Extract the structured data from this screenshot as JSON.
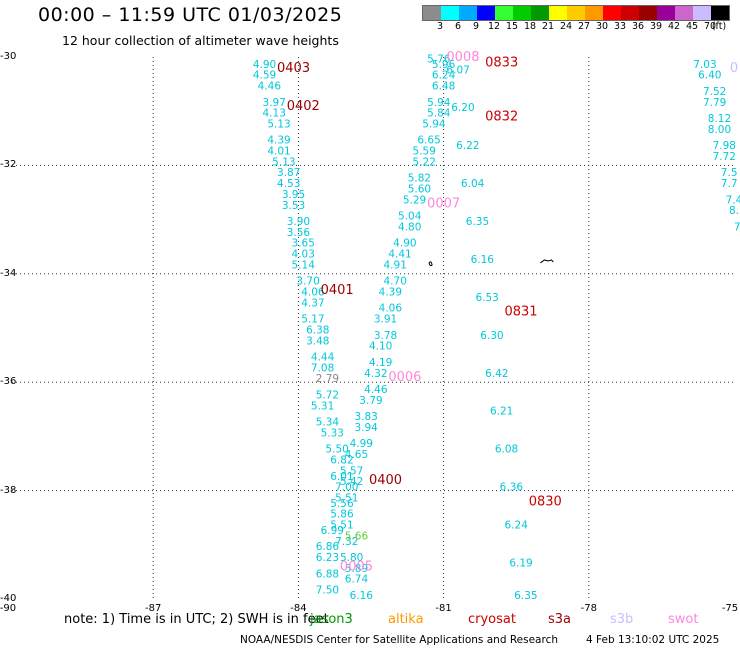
{
  "header": {
    "title": "00:00 – 11:59 UTC 01/03/2025",
    "subtitle": "12 hour collection of altimeter wave heights"
  },
  "colorbar": {
    "colors": [
      "#8c8c8c",
      "#00ffff",
      "#00aaff",
      "#0000ff",
      "#33ff33",
      "#00cc00",
      "#009900",
      "#ffff00",
      "#ffcc00",
      "#ff9900",
      "#ff0000",
      "#cc0000",
      "#990000",
      "#990099",
      "#cc66cc",
      "#ccbbff",
      "#000000"
    ],
    "labels": [
      "3",
      "6",
      "9",
      "12",
      "15",
      "18",
      "21",
      "24",
      "27",
      "30",
      "33",
      "36",
      "39",
      "42",
      "45",
      "70",
      "(ft)"
    ]
  },
  "axes": {
    "lat_labels": [
      "-30",
      "-32",
      "-34",
      "-36",
      "-38",
      "-40"
    ],
    "lon_labels": [
      "-90",
      "-87",
      "-84",
      "-81",
      "-78",
      "-75"
    ],
    "lon_range": [
      -90,
      -75
    ],
    "lat_range": [
      -40,
      -30
    ]
  },
  "tracks": [
    {
      "id": "t1",
      "color": "#00c8dc",
      "points": [
        [
          -84.7,
          -30.2,
          "4.90"
        ],
        [
          -84.7,
          -30.4,
          "4.59"
        ],
        [
          -84.6,
          -30.6,
          "4.46"
        ],
        [
          -84.5,
          -30.9,
          "3.97"
        ],
        [
          -84.5,
          -31.1,
          "4.13"
        ],
        [
          -84.4,
          -31.3,
          "5.13"
        ],
        [
          -84.4,
          -31.6,
          "4.39"
        ],
        [
          -84.4,
          -31.8,
          "4.01"
        ],
        [
          -84.3,
          -32.0,
          "5.13"
        ],
        [
          -84.2,
          -32.2,
          "3.87"
        ],
        [
          -84.2,
          -32.4,
          "4.53"
        ],
        [
          -84.1,
          -32.6,
          "3.95"
        ],
        [
          -84.1,
          -32.8,
          "3.53"
        ],
        [
          -84.0,
          -33.1,
          "3.90"
        ],
        [
          -84.0,
          -33.3,
          "3.56"
        ],
        [
          -83.9,
          -33.5,
          "3.65"
        ],
        [
          -83.9,
          -33.7,
          "4.03"
        ],
        [
          -83.9,
          -33.9,
          "5.14"
        ],
        [
          -83.8,
          -34.2,
          "3.70"
        ],
        [
          -83.7,
          -34.4,
          "4.06"
        ],
        [
          -83.7,
          -34.6,
          "4.37"
        ],
        [
          -83.7,
          -34.9,
          "5.17"
        ],
        [
          -83.6,
          -35.1,
          "6.38"
        ],
        [
          -83.6,
          -35.3,
          "3.48"
        ],
        [
          -83.5,
          -35.6,
          "4.44"
        ],
        [
          -83.5,
          -35.8,
          "7.08"
        ]
      ]
    },
    {
      "id": "t1b",
      "color": "#888888",
      "points": [
        [
          -83.4,
          -36.0,
          "2.79"
        ]
      ]
    },
    {
      "id": "t2",
      "color": "#00c8dc",
      "points": [
        [
          -81.1,
          -30.1,
          "5.76"
        ],
        [
          -81.0,
          -30.2,
          "5.96"
        ],
        [
          -81.0,
          -30.4,
          "6.24"
        ],
        [
          -81.0,
          -30.6,
          "6.48"
        ],
        [
          -81.1,
          -30.9,
          "5.94"
        ],
        [
          -81.1,
          -31.1,
          "5.84"
        ],
        [
          -81.2,
          -31.3,
          "5.94"
        ],
        [
          -81.3,
          -31.6,
          "6.65"
        ],
        [
          -81.4,
          -31.8,
          "5.59"
        ],
        [
          -81.4,
          -32.0,
          "5.22"
        ],
        [
          -81.5,
          -32.3,
          "5.82"
        ],
        [
          -81.5,
          -32.5,
          "5.60"
        ],
        [
          -81.6,
          -32.7,
          "5.29"
        ],
        [
          -81.7,
          -33.0,
          "5.04"
        ],
        [
          -81.7,
          -33.2,
          "4.80"
        ],
        [
          -81.8,
          -33.5,
          "4.90"
        ],
        [
          -81.9,
          -33.7,
          "4.41"
        ],
        [
          -82.0,
          -33.9,
          "4.91"
        ],
        [
          -82.0,
          -34.2,
          "4.70"
        ],
        [
          -82.1,
          -34.4,
          "4.39"
        ],
        [
          -82.1,
          -34.7,
          "4.06"
        ],
        [
          -82.2,
          -34.9,
          "3.91"
        ],
        [
          -82.2,
          -35.2,
          "3.78"
        ],
        [
          -82.3,
          -35.4,
          "4.10"
        ],
        [
          -82.3,
          -35.7,
          "4.19"
        ],
        [
          -82.4,
          -35.9,
          "4.32"
        ],
        [
          -82.4,
          -36.2,
          "4.46"
        ],
        [
          -82.5,
          -36.4,
          "3.79"
        ],
        [
          -82.6,
          -36.7,
          "3.83"
        ],
        [
          -82.6,
          -36.9,
          "3.94"
        ],
        [
          -82.7,
          -37.2,
          "4.99"
        ],
        [
          -82.8,
          -37.4,
          "4.65"
        ],
        [
          -82.9,
          -37.7,
          "5.57"
        ],
        [
          -82.9,
          -37.9,
          "5.42"
        ],
        [
          -83.0,
          -38.2,
          "5.51"
        ],
        [
          -83.1,
          -38.5,
          "5.86"
        ],
        [
          -83.1,
          -38.7,
          "5.51"
        ],
        [
          -83.0,
          -39.0,
          "7.32"
        ],
        [
          -82.9,
          -39.3,
          "5.80"
        ],
        [
          -82.8,
          -39.5,
          "5.89"
        ],
        [
          -82.8,
          -39.7,
          "6.74"
        ],
        [
          -82.7,
          -40.0,
          "6.16"
        ]
      ]
    },
    {
      "id": "t3",
      "color": "#00c8dc",
      "points": [
        [
          -83.4,
          -36.3,
          "5.72"
        ],
        [
          -83.5,
          -36.5,
          "5.31"
        ],
        [
          -83.4,
          -36.8,
          "5.34"
        ],
        [
          -83.3,
          -37.0,
          "5.33"
        ],
        [
          -83.2,
          -37.3,
          "5.50"
        ],
        [
          -83.1,
          -37.5,
          "6.82"
        ],
        [
          -83.1,
          -37.8,
          "6.01"
        ],
        [
          -83.0,
          -38.0,
          "7.00"
        ],
        [
          -83.1,
          -38.3,
          "5.56"
        ],
        [
          -83.3,
          -38.8,
          "6.99"
        ],
        [
          -83.4,
          -39.1,
          "6.86"
        ],
        [
          -83.4,
          -39.3,
          "6.23"
        ],
        [
          -83.4,
          -39.6,
          "6.88"
        ],
        [
          -83.4,
          -39.9,
          "7.50"
        ]
      ]
    },
    {
      "id": "t3b",
      "color": "#66cc33",
      "points": [
        [
          -82.8,
          -38.9,
          "5.66"
        ]
      ]
    },
    {
      "id": "t4",
      "color": "#00c8dc",
      "points": [
        [
          -80.7,
          -30.3,
          "6.07"
        ],
        [
          -80.6,
          -31.0,
          "6.20"
        ],
        [
          -80.5,
          -31.7,
          "6.22"
        ],
        [
          -80.4,
          -32.4,
          "6.04"
        ],
        [
          -80.3,
          -33.1,
          "6.35"
        ],
        [
          -80.2,
          -33.8,
          "6.16"
        ],
        [
          -80.1,
          -34.5,
          "6.53"
        ],
        [
          -80.0,
          -35.2,
          "6.30"
        ],
        [
          -79.9,
          -35.9,
          "6.42"
        ],
        [
          -79.8,
          -36.6,
          "6.21"
        ],
        [
          -79.7,
          -37.3,
          "6.08"
        ],
        [
          -79.6,
          -38.0,
          "6.36"
        ],
        [
          -79.5,
          -38.7,
          "6.24"
        ],
        [
          -79.4,
          -39.4,
          "6.19"
        ],
        [
          -79.3,
          -40.0,
          "6.35"
        ]
      ]
    },
    {
      "id": "t5",
      "color": "#00c8dc",
      "points": [
        [
          -75.6,
          -30.2,
          "7.03"
        ],
        [
          -75.5,
          -30.4,
          "6.40"
        ],
        [
          -75.4,
          -30.7,
          "7.52"
        ],
        [
          -75.4,
          -30.9,
          "7.79"
        ],
        [
          -75.3,
          -31.2,
          "8.12"
        ],
        [
          -75.3,
          -31.4,
          "8.00"
        ],
        [
          -75.2,
          -31.7,
          "7.98"
        ],
        [
          -75.2,
          -31.9,
          "7.72"
        ],
        [
          -75.1,
          -32.2,
          "7.5"
        ],
        [
          -75.1,
          -32.4,
          "7.7"
        ],
        [
          -75.0,
          -32.7,
          "7.4"
        ],
        [
          -75.0,
          -32.9,
          "8."
        ],
        [
          -74.9,
          -33.2,
          "7."
        ]
      ]
    }
  ],
  "time_labels": [
    {
      "text": "0403",
      "lon": -84.1,
      "lat": -30.2,
      "color": "#990000"
    },
    {
      "text": "0402",
      "lon": -83.9,
      "lat": -30.9,
      "color": "#990000"
    },
    {
      "text": "0401",
      "lon": -83.2,
      "lat": -34.3,
      "color": "#990000"
    },
    {
      "text": "0400",
      "lon": -82.2,
      "lat": -37.8,
      "color": "#990000"
    },
    {
      "text": "0833",
      "lon": -79.8,
      "lat": -30.1,
      "color": "#cc0000"
    },
    {
      "text": "0832",
      "lon": -79.8,
      "lat": -31.1,
      "color": "#cc0000"
    },
    {
      "text": "0831",
      "lon": -79.4,
      "lat": -34.7,
      "color": "#cc0000"
    },
    {
      "text": "0830",
      "lon": -78.9,
      "lat": -38.2,
      "color": "#cc0000"
    },
    {
      "text": "0008",
      "lon": -80.6,
      "lat": -30.0,
      "color": "#ff88dd"
    },
    {
      "text": "0007",
      "lon": -81.0,
      "lat": -32.7,
      "color": "#ff88dd"
    },
    {
      "text": "0006",
      "lon": -81.8,
      "lat": -35.9,
      "color": "#ff88dd"
    },
    {
      "text": "0005",
      "lon": -82.8,
      "lat": -39.4,
      "color": "#ff88dd"
    },
    {
      "text": "0",
      "lon": -75.0,
      "lat": -30.2,
      "color": "#ccbbff"
    }
  ],
  "footer": {
    "note": "note:  1) Time is in UTC; 2) SWH is in feet",
    "legend": [
      {
        "label": "jason3",
        "color": "#009900"
      },
      {
        "label": "altika",
        "color": "#ff9900"
      },
      {
        "label": "cryosat",
        "color": "#cc0000"
      },
      {
        "label": "s3a",
        "color": "#990000"
      },
      {
        "label": "s3b",
        "color": "#ccbbff"
      },
      {
        "label": "swot",
        "color": "#ff88dd"
      }
    ],
    "credit": "NOAA/NESDIS Center for Satellite Applications and Research",
    "timestamp": "4 Feb 13:10:02 UTC 2025"
  }
}
